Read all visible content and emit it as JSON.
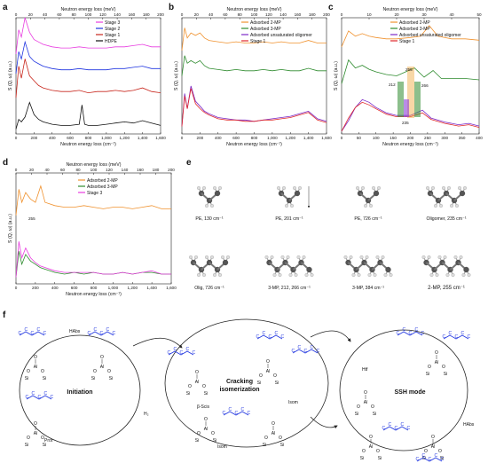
{
  "figure": {
    "panel_labels": [
      "a",
      "b",
      "c",
      "d",
      "e",
      "f"
    ]
  },
  "chart_data": [
    {
      "panel": "a",
      "type": "line",
      "xlabel": "Neutron energy loss (cm⁻¹)",
      "x2label": "Neutron energy loss (meV)",
      "ylabel": "S (Q, ω) (a.u.)",
      "xlim": [
        0,
        1600
      ],
      "x2lim": [
        0,
        200
      ],
      "xticks": [
        "0",
        "200",
        "400",
        "600",
        "800",
        "1,000",
        "1,200",
        "1,400",
        "1,600"
      ],
      "x2ticks": [
        "0",
        "20",
        "40",
        "60",
        "80",
        "100",
        "120",
        "140",
        "160",
        "180",
        "200"
      ],
      "legend": {
        "position": "top-right",
        "entries": [
          "Stage 3",
          "Stage 2",
          "Stage 1",
          "HDPE"
        ]
      },
      "series": [
        {
          "name": "Stage 3",
          "color": "#e83de0",
          "offset": 3.0,
          "x": [
            0,
            30,
            60,
            100,
            150,
            200,
            250,
            300,
            400,
            500,
            600,
            700,
            800,
            900,
            1000,
            1100,
            1200,
            1300,
            1400,
            1500,
            1600
          ],
          "values": [
            0.3,
            1.3,
            1.0,
            1.8,
            1.2,
            0.9,
            0.8,
            0.7,
            0.6,
            0.55,
            0.55,
            0.6,
            0.55,
            0.55,
            0.55,
            0.6,
            0.6,
            0.65,
            0.7,
            0.6,
            0.6
          ]
        },
        {
          "name": "Stage 2",
          "color": "#1f34e0",
          "offset": 2.2,
          "x": [
            0,
            30,
            60,
            100,
            150,
            200,
            250,
            300,
            400,
            500,
            600,
            700,
            800,
            900,
            1000,
            1100,
            1200,
            1300,
            1400,
            1500,
            1600
          ],
          "values": [
            0.3,
            1.2,
            0.9,
            1.6,
            1.0,
            0.8,
            0.7,
            0.6,
            0.5,
            0.45,
            0.45,
            0.5,
            0.45,
            0.45,
            0.45,
            0.5,
            0.5,
            0.55,
            0.6,
            0.5,
            0.5
          ]
        },
        {
          "name": "Stage 1",
          "color": "#c8261c",
          "offset": 1.2,
          "x": [
            0,
            30,
            60,
            100,
            150,
            200,
            250,
            300,
            400,
            500,
            600,
            700,
            800,
            900,
            1000,
            1100,
            1200,
            1300,
            1400,
            1500,
            1600
          ],
          "values": [
            0.3,
            1.6,
            1.1,
            1.9,
            1.2,
            1.0,
            0.8,
            0.7,
            0.6,
            0.55,
            0.55,
            0.6,
            0.5,
            0.55,
            0.55,
            0.6,
            0.55,
            0.6,
            0.7,
            0.55,
            0.5
          ]
        },
        {
          "name": "HDPE",
          "color": "#111111",
          "offset": 0.0,
          "x": [
            0,
            30,
            60,
            100,
            150,
            200,
            250,
            300,
            400,
            500,
            600,
            700,
            730,
            760,
            800,
            900,
            1000,
            1100,
            1200,
            1300,
            1400,
            1500,
            1600
          ],
          "values": [
            0.2,
            0.6,
            0.5,
            0.7,
            1.3,
            0.8,
            0.6,
            0.5,
            0.4,
            0.35,
            0.35,
            0.4,
            1.2,
            0.4,
            0.35,
            0.35,
            0.4,
            0.45,
            0.5,
            0.45,
            0.55,
            0.45,
            0.35
          ]
        }
      ]
    },
    {
      "panel": "b",
      "type": "line",
      "xlabel": "Neutron energy loss (cm⁻¹)",
      "x2label": "Neutron energy loss (meV)",
      "ylabel": "S (Q, ω) (a.u.)",
      "xlim": [
        0,
        1600
      ],
      "x2lim": [
        0,
        200
      ],
      "xticks": [
        "0",
        "200",
        "400",
        "600",
        "800",
        "1,000",
        "1,200",
        "1,400",
        "1,600"
      ],
      "x2ticks": [
        "0",
        "20",
        "40",
        "60",
        "80",
        "100",
        "120",
        "140",
        "160",
        "180",
        "200"
      ],
      "legend": {
        "position": "top-right",
        "entries": [
          "Adsorbed 2-MP",
          "Adsorbed 3-MP",
          "Adsorbed unsaturated oligomer",
          "Stage 1"
        ]
      },
      "series": [
        {
          "name": "Adsorbed 2-MP",
          "color": "#f0922f",
          "offset": 3.0,
          "x": [
            0,
            30,
            60,
            100,
            150,
            200,
            250,
            300,
            400,
            500,
            600,
            700,
            800,
            900,
            1000,
            1100,
            1200,
            1300,
            1400,
            1500,
            1600
          ],
          "values": [
            0.3,
            1.2,
            0.8,
            1.0,
            0.9,
            1.0,
            0.8,
            0.7,
            0.65,
            0.6,
            0.65,
            0.6,
            0.6,
            0.65,
            0.6,
            0.65,
            0.6,
            0.6,
            0.7,
            0.6,
            0.6
          ]
        },
        {
          "name": "Adsorbed 3-MP",
          "color": "#2e8b2e",
          "offset": 2.0,
          "x": [
            0,
            30,
            60,
            100,
            150,
            200,
            250,
            300,
            400,
            500,
            600,
            700,
            800,
            900,
            1000,
            1100,
            1200,
            1300,
            1400,
            1500,
            1600
          ],
          "values": [
            0.3,
            1.1,
            0.8,
            0.9,
            0.8,
            0.9,
            0.7,
            0.6,
            0.55,
            0.5,
            0.55,
            0.5,
            0.5,
            0.55,
            0.5,
            0.55,
            0.5,
            0.5,
            0.6,
            0.5,
            0.5
          ]
        },
        {
          "name": "Adsorbed unsaturated oligomer",
          "color": "#7a28c8",
          "offset": 0.0,
          "x": [
            0,
            30,
            60,
            100,
            150,
            200,
            250,
            300,
            400,
            500,
            600,
            700,
            800,
            900,
            1000,
            1100,
            1200,
            1300,
            1400,
            1500,
            1600
          ],
          "values": [
            0.3,
            1.6,
            1.0,
            1.9,
            1.3,
            1.1,
            0.9,
            0.8,
            0.65,
            0.6,
            0.55,
            0.55,
            0.5,
            0.55,
            0.6,
            0.65,
            0.7,
            0.8,
            0.9,
            0.6,
            0.5
          ]
        },
        {
          "name": "Stage 1",
          "color": "#e0282a",
          "offset": 0.0,
          "x": [
            0,
            30,
            60,
            100,
            150,
            200,
            250,
            300,
            400,
            500,
            600,
            700,
            800,
            900,
            1000,
            1100,
            1200,
            1300,
            1400,
            1500,
            1600
          ],
          "values": [
            0.3,
            1.5,
            1.0,
            1.8,
            1.2,
            1.0,
            0.85,
            0.75,
            0.6,
            0.55,
            0.55,
            0.5,
            0.5,
            0.55,
            0.55,
            0.6,
            0.65,
            0.75,
            0.85,
            0.55,
            0.45
          ]
        }
      ]
    },
    {
      "panel": "c",
      "type": "line",
      "xlabel": "Neutron energy loss (cm⁻¹)",
      "x2label": "Neutron energy loss (meV)",
      "ylabel": "S (Q, ω) (a.u.)",
      "xlim": [
        0,
        400
      ],
      "x2lim": [
        0,
        50
      ],
      "xticks": [
        "0",
        "50",
        "100",
        "150",
        "200",
        "250",
        "300",
        "350",
        "400"
      ],
      "x2ticks": [
        "0",
        "10",
        "20",
        "30",
        "40",
        "50"
      ],
      "legend": {
        "position": "top-right",
        "entries": [
          "Adsorbed 2-MP",
          "Adsorbed 3-MP",
          "Adsorbed unsaturated oligomer",
          "Stage 1"
        ]
      },
      "annotations": [
        "255",
        "212",
        "266",
        "235"
      ],
      "series": [
        {
          "name": "Adsorbed 2-MP",
          "color": "#f0922f",
          "offset": 3.0,
          "x": [
            0,
            20,
            40,
            60,
            80,
            100,
            130,
            160,
            200,
            230,
            255,
            280,
            320,
            360,
            400
          ],
          "values": [
            0.3,
            0.9,
            0.7,
            0.8,
            0.7,
            0.65,
            0.6,
            0.6,
            0.65,
            0.7,
            1.1,
            0.7,
            0.6,
            0.6,
            0.55
          ]
        },
        {
          "name": "Adsorbed 3-MP",
          "color": "#2e8b2e",
          "offset": 1.6,
          "x": [
            0,
            20,
            40,
            60,
            80,
            100,
            130,
            160,
            212,
            240,
            266,
            290,
            320,
            360,
            400
          ],
          "values": [
            0.3,
            1.2,
            0.9,
            1.0,
            0.85,
            0.75,
            0.65,
            0.6,
            0.9,
            0.55,
            0.8,
            0.5,
            0.5,
            0.5,
            0.45
          ]
        },
        {
          "name": "Adsorbed unsaturated oligomer",
          "color": "#7a28c8",
          "offset": 0.0,
          "x": [
            0,
            20,
            40,
            60,
            80,
            100,
            130,
            160,
            200,
            235,
            260,
            300,
            340,
            370,
            400
          ],
          "values": [
            0.1,
            0.5,
            1.0,
            1.3,
            1.2,
            1.0,
            0.8,
            0.7,
            0.7,
            0.9,
            0.6,
            0.45,
            0.35,
            0.4,
            0.3
          ]
        },
        {
          "name": "Stage 1",
          "color": "#e0282a",
          "offset": 0.0,
          "x": [
            0,
            20,
            40,
            60,
            80,
            100,
            130,
            160,
            200,
            235,
            260,
            300,
            340,
            370,
            400
          ],
          "values": [
            0.1,
            0.6,
            1.0,
            1.2,
            1.1,
            0.95,
            0.75,
            0.65,
            0.65,
            0.8,
            0.55,
            0.4,
            0.3,
            0.35,
            0.25
          ]
        }
      ]
    },
    {
      "panel": "d",
      "type": "line",
      "xlabel": "Neutron energy loss (cm⁻¹)",
      "x2label": "Neutron energy loss (meV)",
      "ylabel": "S (Q, ω) (a.u.)",
      "xlim": [
        0,
        1600
      ],
      "x2lim": [
        0,
        200
      ],
      "xticks": [
        "0",
        "200",
        "400",
        "600",
        "800",
        "1,000",
        "1,200",
        "1,400",
        "1,600"
      ],
      "x2ticks": [
        "0",
        "20",
        "40",
        "60",
        "80",
        "100",
        "120",
        "140",
        "160",
        "180",
        "200"
      ],
      "legend": {
        "position": "top-right",
        "entries": [
          "Adsorbed 2-MP",
          "Adsorbed 3-MP",
          "Stage 3"
        ]
      },
      "annotations": [
        "255"
      ],
      "series": [
        {
          "name": "Adsorbed 2-MP",
          "color": "#f0922f",
          "offset": 1.8,
          "x": [
            0,
            30,
            60,
            100,
            150,
            200,
            255,
            300,
            400,
            500,
            600,
            700,
            800,
            900,
            1000,
            1100,
            1200,
            1300,
            1400,
            1500,
            1600
          ],
          "values": [
            0.3,
            1.1,
            0.7,
            1.0,
            0.8,
            0.7,
            1.2,
            0.7,
            0.6,
            0.55,
            0.55,
            0.6,
            0.55,
            0.5,
            0.55,
            0.55,
            0.5,
            0.55,
            0.6,
            0.5,
            0.5
          ]
        },
        {
          "name": "Adsorbed 3-MP",
          "color": "#2e8b2e",
          "offset": 0.0,
          "x": [
            0,
            30,
            60,
            100,
            150,
            200,
            250,
            300,
            400,
            500,
            600,
            700,
            800,
            900,
            1000,
            1100,
            1200,
            1300,
            1400,
            1500,
            1600
          ],
          "values": [
            0.2,
            1.0,
            0.6,
            0.9,
            0.7,
            0.6,
            0.5,
            0.45,
            0.35,
            0.3,
            0.35,
            0.3,
            0.35,
            0.3,
            0.3,
            0.35,
            0.3,
            0.35,
            0.35,
            0.3,
            0.3
          ]
        },
        {
          "name": "Stage 3",
          "color": "#e83de0",
          "offset": 0.0,
          "x": [
            0,
            30,
            60,
            100,
            150,
            200,
            250,
            300,
            400,
            500,
            600,
            700,
            800,
            900,
            1000,
            1100,
            1200,
            1300,
            1400,
            1500,
            1600
          ],
          "values": [
            0.2,
            1.3,
            0.8,
            1.1,
            0.8,
            0.65,
            0.55,
            0.5,
            0.4,
            0.35,
            0.35,
            0.35,
            0.35,
            0.3,
            0.3,
            0.35,
            0.3,
            0.35,
            0.4,
            0.3,
            0.3
          ]
        }
      ]
    }
  ],
  "panel_e": {
    "molecules": [
      "PE, 130 cm⁻¹",
      "PE, 201 cm⁻¹",
      "PE, 726 cm⁻¹",
      "Oligomer, 235 cm⁻¹",
      "Olig, 726 cm⁻¹",
      "3-MP, 212, 266 cm⁻¹",
      "3-MP, 384 cm⁻¹",
      "2-MP, 255 cm⁻¹"
    ]
  },
  "panel_f": {
    "section_titles": [
      "Initiation",
      "Cracking isomerization",
      "SSH mode"
    ],
    "step_labels": [
      "HAbs",
      "Prot",
      "H₂",
      "β-Scis",
      "Isom",
      "Isom",
      "Htf",
      "HAbs"
    ],
    "atoms": {
      "al": "Al",
      "si": "Si",
      "o": "O",
      "h": "H",
      "oh": "HO",
      "ooh": "OOH",
      "n": "n"
    }
  },
  "colors": {
    "blue": "#1f34e0",
    "black": "#111111",
    "green_band": "#2e8b2e",
    "orange_band": "#f0a63a",
    "purple_band": "#8b3fd6"
  }
}
